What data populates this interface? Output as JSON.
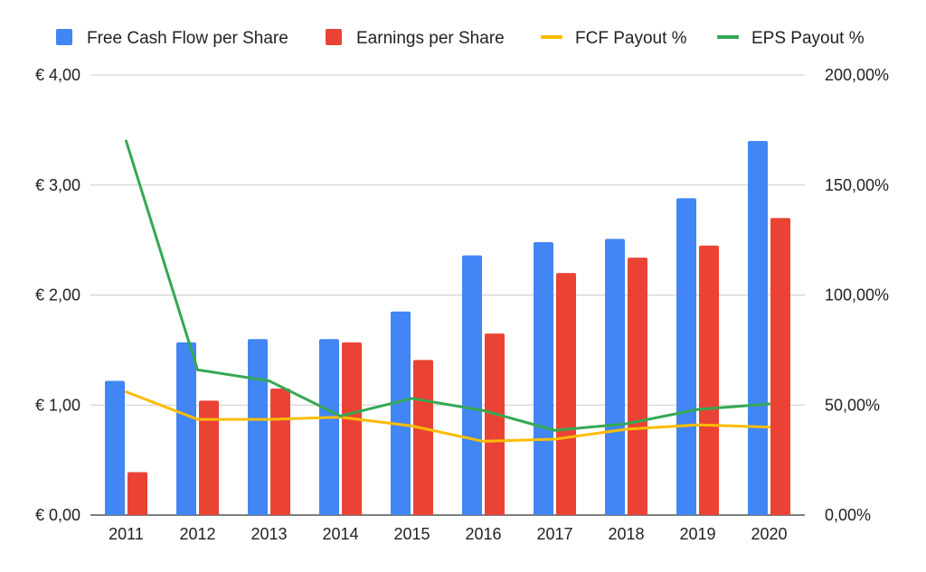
{
  "chart_data": {
    "type": "bar",
    "title": "",
    "categories": [
      "2011",
      "2012",
      "2013",
      "2014",
      "2015",
      "2016",
      "2017",
      "2018",
      "2019",
      "2020"
    ],
    "series": [
      {
        "name": "Free Cash Flow per Share",
        "kind": "bar",
        "axis": "left",
        "color": "#4285f4",
        "values": [
          1.22,
          1.57,
          1.6,
          1.6,
          1.85,
          2.36,
          2.48,
          2.51,
          2.88,
          3.4
        ]
      },
      {
        "name": "Earnings per Share",
        "kind": "bar",
        "axis": "left",
        "color": "#ea4335",
        "values": [
          0.39,
          1.04,
          1.15,
          1.57,
          1.41,
          1.65,
          2.2,
          2.34,
          2.45,
          2.7
        ]
      },
      {
        "name": "FCF Payout %",
        "kind": "line",
        "axis": "right",
        "color": "#fbbc04",
        "values": [
          56,
          43.5,
          43.5,
          44.5,
          40.5,
          33.5,
          34.5,
          39,
          41,
          40
        ]
      },
      {
        "name": "EPS Payout %",
        "kind": "line",
        "axis": "right",
        "color": "#34a853",
        "values": [
          170,
          66,
          61,
          45,
          53,
          47.5,
          38.5,
          41.5,
          48,
          50.5
        ]
      }
    ],
    "y_left": {
      "min": 0,
      "max": 4,
      "ticks": [
        "€ 0,00",
        "€ 1,00",
        "€ 2,00",
        "€ 3,00",
        "€ 4,00"
      ]
    },
    "y_right": {
      "min": 0,
      "max": 200,
      "ticks": [
        "0,00%",
        "50,00%",
        "100,00%",
        "150,00%",
        "200,00%"
      ]
    },
    "grid": true,
    "legend_position": "top"
  }
}
